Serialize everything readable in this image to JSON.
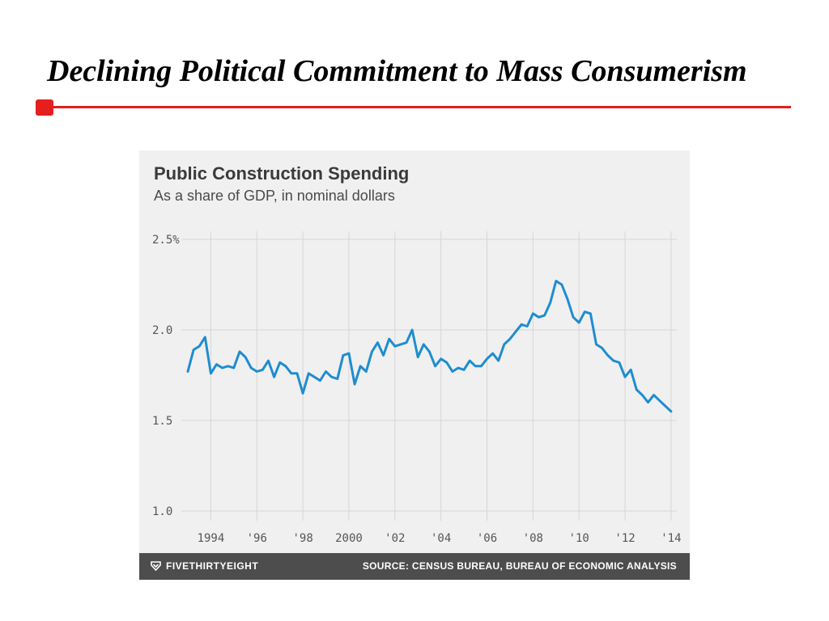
{
  "slide": {
    "title": "Declining Political Commitment to Mass Consumerism",
    "accent_color": "#e51e1e"
  },
  "chart_data": {
    "type": "line",
    "title": "Public Construction Spending",
    "subtitle": "As a share of GDP, in nominal dollars",
    "xlabel": "",
    "ylabel": "",
    "ylim": [
      1.0,
      2.5
    ],
    "xlim": [
      1993,
      2014.25
    ],
    "yticks": [
      {
        "value": 2.5,
        "label": "2.5%"
      },
      {
        "value": 2.0,
        "label": "2.0"
      },
      {
        "value": 1.5,
        "label": "1.5"
      },
      {
        "value": 1.0,
        "label": "1.0"
      }
    ],
    "xticks": [
      {
        "value": 1994,
        "label": "1994"
      },
      {
        "value": 1996,
        "label": "'96"
      },
      {
        "value": 1998,
        "label": "'98"
      },
      {
        "value": 2000,
        "label": "2000"
      },
      {
        "value": 2002,
        "label": "'02"
      },
      {
        "value": 2004,
        "label": "'04"
      },
      {
        "value": 2006,
        "label": "'06"
      },
      {
        "value": 2008,
        "label": "'08"
      },
      {
        "value": 2010,
        "label": "'10"
      },
      {
        "value": 2012,
        "label": "'12"
      },
      {
        "value": 2014,
        "label": "'14"
      }
    ],
    "grid": true,
    "line_color": "#1f8dd0",
    "series": [
      {
        "name": "Public construction spending (% of GDP)",
        "x": [
          1993.0,
          1993.25,
          1993.5,
          1993.75,
          1994.0,
          1994.25,
          1994.5,
          1994.75,
          1995.0,
          1995.25,
          1995.5,
          1995.75,
          1996.0,
          1996.25,
          1996.5,
          1996.75,
          1997.0,
          1997.25,
          1997.5,
          1997.75,
          1998.0,
          1998.25,
          1998.5,
          1998.75,
          1999.0,
          1999.25,
          1999.5,
          1999.75,
          2000.0,
          2000.25,
          2000.5,
          2000.75,
          2001.0,
          2001.25,
          2001.5,
          2001.75,
          2002.0,
          2002.25,
          2002.5,
          2002.75,
          2003.0,
          2003.25,
          2003.5,
          2003.75,
          2004.0,
          2004.25,
          2004.5,
          2004.75,
          2005.0,
          2005.25,
          2005.5,
          2005.75,
          2006.0,
          2006.25,
          2006.5,
          2006.75,
          2007.0,
          2007.25,
          2007.5,
          2007.75,
          2008.0,
          2008.25,
          2008.5,
          2008.75,
          2009.0,
          2009.25,
          2009.5,
          2009.75,
          2010.0,
          2010.25,
          2010.5,
          2010.75,
          2011.0,
          2011.25,
          2011.5,
          2011.75,
          2012.0,
          2012.25,
          2012.5,
          2012.75,
          2013.0,
          2013.25,
          2013.5,
          2013.75,
          2014.0
        ],
        "values": [
          1.77,
          1.89,
          1.91,
          1.96,
          1.76,
          1.81,
          1.79,
          1.8,
          1.79,
          1.88,
          1.85,
          1.79,
          1.77,
          1.78,
          1.83,
          1.74,
          1.82,
          1.8,
          1.76,
          1.76,
          1.65,
          1.76,
          1.74,
          1.72,
          1.77,
          1.74,
          1.73,
          1.86,
          1.87,
          1.7,
          1.8,
          1.77,
          1.88,
          1.93,
          1.86,
          1.95,
          1.91,
          1.92,
          1.93,
          2.0,
          1.85,
          1.92,
          1.88,
          1.8,
          1.84,
          1.82,
          1.77,
          1.79,
          1.78,
          1.83,
          1.8,
          1.8,
          1.84,
          1.87,
          1.83,
          1.92,
          1.95,
          1.99,
          2.03,
          2.02,
          2.09,
          2.07,
          2.08,
          2.15,
          2.27,
          2.25,
          2.17,
          2.07,
          2.04,
          2.1,
          2.09,
          1.92,
          1.9,
          1.86,
          1.83,
          1.82,
          1.74,
          1.78,
          1.67,
          1.64,
          1.6,
          1.64,
          1.61,
          1.58,
          1.55
        ]
      }
    ]
  },
  "footer": {
    "brand": "FIVETHIRTYEIGHT",
    "brand_icon": "fivethirtyeight-logo-icon",
    "source": "SOURCE: CENSUS BUREAU, BUREAU OF ECONOMIC ANALYSIS"
  }
}
